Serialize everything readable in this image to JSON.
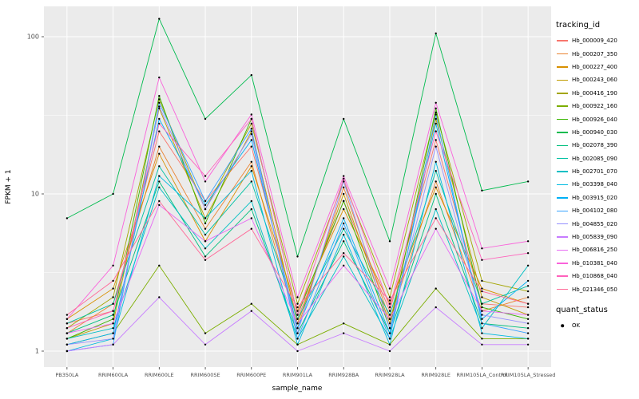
{
  "figure": {
    "background": "#FFFFFF",
    "panel_background": "#EBEBEB",
    "grid_major_color": "#FFFFFF",
    "grid_minor_color": "#FFFFFF",
    "axis_text_color": "#4D4D4D",
    "text_color": "#000000"
  },
  "axes": {
    "x_title": "sample_name",
    "y_title": "FPKM + 1",
    "y_ticks": [
      {
        "label": "1",
        "value": 1
      },
      {
        "label": "10",
        "value": 10
      },
      {
        "label": "100",
        "value": 100
      }
    ],
    "y_minor": [
      3.1623,
      31.623
    ]
  },
  "legend": {
    "tracking_title": "tracking_id",
    "quant_title": "quant_status",
    "quant_items": [
      {
        "label": "OK",
        "marker": "point-icon",
        "color": "#000000"
      }
    ]
  },
  "chart_data": {
    "type": "line",
    "title": "",
    "xlabel": "sample_name",
    "ylabel": "FPKM + 1",
    "y_scale": "log10",
    "ylim": [
      0.79,
      156
    ],
    "grid": true,
    "legend_position": "right",
    "point_color": "#000000",
    "categories": [
      "PB350LA",
      "RRIM600LA",
      "RRIM600LE",
      "RRIM600SE",
      "RRIM600PE",
      "RRIM901LA",
      "RRIM928BA",
      "RRIM928LA",
      "RRIM928LE",
      "RRIM105LA_Control",
      "RRIM105LA_Stressed"
    ],
    "series": [
      {
        "name": "Hb_000009_420",
        "color": "#F8766D",
        "values": [
          1.5,
          1.8,
          25,
          9,
          20,
          1.6,
          9,
          1.8,
          22,
          2.0,
          1.9
        ]
      },
      {
        "name": "Hb_000207_350",
        "color": "#EA8331",
        "values": [
          1.3,
          2.0,
          20,
          6,
          16,
          1.4,
          11,
          1.6,
          12,
          1.8,
          2.2
        ]
      },
      {
        "name": "Hb_000227_400",
        "color": "#D89000",
        "values": [
          1.6,
          2.5,
          18,
          5,
          15,
          1.8,
          8,
          2.0,
          11,
          2.5,
          2.0
        ]
      },
      {
        "name": "Hb_000243_060",
        "color": "#C09B00",
        "values": [
          1.2,
          1.5,
          35,
          7,
          25,
          1.5,
          10,
          1.5,
          30,
          2.2,
          1.7
        ]
      },
      {
        "name": "Hb_000416_190",
        "color": "#A3A500",
        "values": [
          1.4,
          2.2,
          40,
          8,
          28,
          2.0,
          12,
          2.2,
          33,
          2.8,
          2.4
        ]
      },
      {
        "name": "Hb_000922_160",
        "color": "#7CAE00",
        "values": [
          1.1,
          1.3,
          3.5,
          1.3,
          2.0,
          1.1,
          1.5,
          1.1,
          2.5,
          1.2,
          1.2
        ]
      },
      {
        "name": "Hb_000926_040",
        "color": "#39B600",
        "values": [
          1.2,
          1.6,
          42,
          6.5,
          30,
          1.7,
          9,
          1.4,
          35,
          1.9,
          1.6
        ]
      },
      {
        "name": "Hb_000940_030",
        "color": "#00BB4E",
        "values": [
          7,
          10,
          130,
          30,
          57,
          4,
          30,
          5,
          105,
          10.5,
          12
        ]
      },
      {
        "name": "Hb_002078_390",
        "color": "#00BF7D",
        "values": [
          1.3,
          1.7,
          12,
          4,
          8,
          1.3,
          5,
          1.3,
          10,
          1.5,
          1.4
        ]
      },
      {
        "name": "Hb_002085_090",
        "color": "#00C1A3",
        "values": [
          1.5,
          2.0,
          15,
          5.5,
          12,
          1.6,
          6,
          1.7,
          14,
          2.0,
          2.6
        ]
      },
      {
        "name": "Hb_002701_070",
        "color": "#00BFC4",
        "values": [
          1.2,
          1.4,
          11,
          4.5,
          9,
          1.2,
          4,
          1.2,
          8,
          1.4,
          3.5
        ]
      },
      {
        "name": "Hb_003398_040",
        "color": "#00BAE0",
        "values": [
          1.0,
          1.2,
          13,
          7,
          14,
          1.1,
          5.5,
          1.1,
          16,
          1.3,
          1.2
        ]
      },
      {
        "name": "Hb_003915_020",
        "color": "#00B0F6",
        "values": [
          1.1,
          1.3,
          30,
          8.5,
          22,
          1.4,
          7,
          1.3,
          28,
          1.6,
          2.8
        ]
      },
      {
        "name": "Hb_004102_080",
        "color": "#35A2FF",
        "values": [
          1.0,
          1.1,
          38,
          9,
          26,
          1.2,
          6.5,
          1.2,
          32,
          1.5,
          1.3
        ]
      },
      {
        "name": "Hb_004855_020",
        "color": "#9590FF",
        "values": [
          1.1,
          1.2,
          36,
          8,
          24,
          1.3,
          12,
          1.4,
          20,
          1.7,
          1.5
        ]
      },
      {
        "name": "Hb_005839_090",
        "color": "#C77CFF",
        "values": [
          1.0,
          1.1,
          2.2,
          1.1,
          1.8,
          1.0,
          1.3,
          1.0,
          1.9,
          1.1,
          1.1
        ]
      },
      {
        "name": "Hb_006816_250",
        "color": "#E76BF3",
        "values": [
          1.3,
          1.5,
          8.5,
          5,
          7,
          1.5,
          3.5,
          1.6,
          6,
          1.8,
          1.7
        ]
      },
      {
        "name": "Hb_010381_040",
        "color": "#FA62DB",
        "values": [
          1.6,
          3.5,
          55,
          12,
          32,
          2.2,
          13,
          2.5,
          38,
          4.5,
          5.0
        ]
      },
      {
        "name": "Hb_010868_040",
        "color": "#FF62BC",
        "values": [
          1.4,
          1.8,
          28,
          13,
          30,
          1.7,
          12.5,
          1.9,
          25,
          3.8,
          4.2
        ]
      },
      {
        "name": "Hb_021346_050",
        "color": "#FF6A98",
        "values": [
          1.7,
          2.8,
          9,
          3.8,
          6,
          1.9,
          4.2,
          2.1,
          7,
          2.4,
          2.0
        ]
      }
    ]
  }
}
